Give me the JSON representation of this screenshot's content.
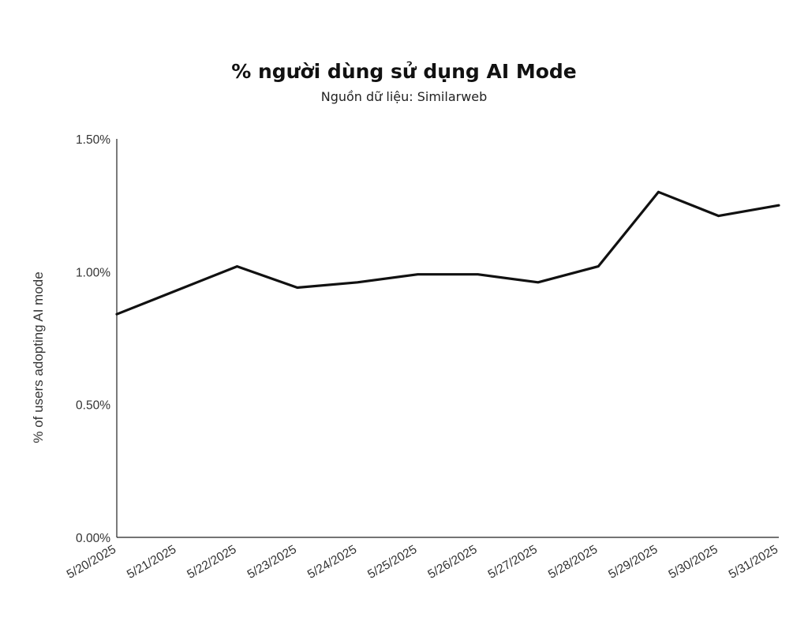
{
  "chart_data": {
    "type": "line",
    "title": "% người dùng sử dụng AI Mode",
    "subtitle": "Nguồn dữ liệu: Similarweb",
    "xlabel": "",
    "ylabel": "% of users adopting AI mode",
    "ylim": [
      0,
      1.5
    ],
    "ytick_values": [
      0,
      0.5,
      1.0,
      1.5
    ],
    "ytick_labels": [
      "0.00%",
      "0.50%",
      "1.00%",
      "1.50%"
    ],
    "x": [
      "5/20/2025",
      "5/21/2025",
      "5/22/2025",
      "5/23/2025",
      "5/24/2025",
      "5/25/2025",
      "5/26/2025",
      "5/27/2025",
      "5/28/2025",
      "5/29/2025",
      "5/30/2025",
      "5/31/2025"
    ],
    "series": [
      {
        "values": [
          0.84,
          0.93,
          1.02,
          0.94,
          0.96,
          0.99,
          0.99,
          0.96,
          1.02,
          1.3,
          1.21,
          1.25
        ]
      }
    ],
    "grid": false,
    "legend": "none",
    "colors": {
      "line": "#111111",
      "axis": "#222222"
    }
  }
}
